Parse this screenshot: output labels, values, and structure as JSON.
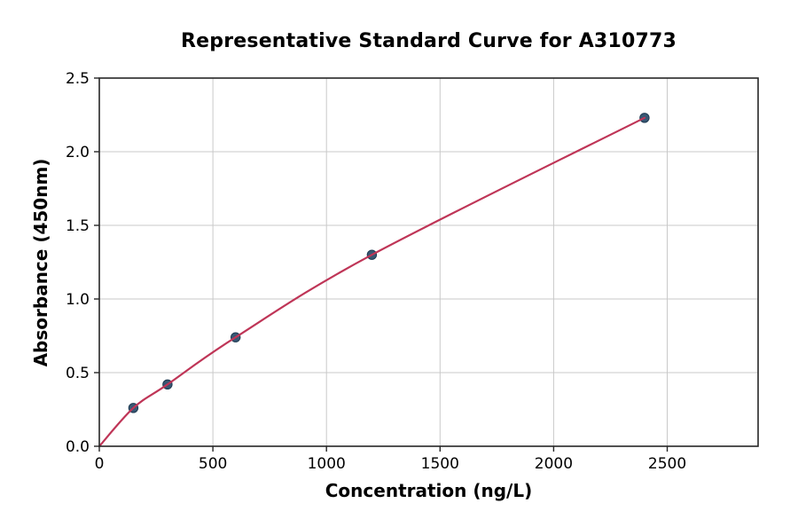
{
  "figure": {
    "background": "#ffffff"
  },
  "chart_data": {
    "type": "scatter",
    "title": "Representative Standard Curve for A310773",
    "xlabel": "Concentration (ng/L)",
    "ylabel": "Absorbance (450nm)",
    "xlim": [
      0,
      2900
    ],
    "ylim": [
      0,
      2.5
    ],
    "xticks": [
      0,
      500,
      1000,
      1500,
      2000,
      2500
    ],
    "yticks": [
      0.0,
      0.5,
      1.0,
      1.5,
      2.0,
      2.5
    ],
    "grid": true,
    "legend_position": "none",
    "points": [
      {
        "x": 150,
        "y": 0.26
      },
      {
        "x": 300,
        "y": 0.42
      },
      {
        "x": 600,
        "y": 0.74
      },
      {
        "x": 1200,
        "y": 1.3
      },
      {
        "x": 2400,
        "y": 2.23
      }
    ],
    "curve": {
      "description": "smooth fitted standard curve from origin through all data points",
      "x_start": 0,
      "y_start": 0.0,
      "x_end": 2400,
      "y_end": 2.23
    },
    "colors": {
      "curve": "#bf3557",
      "point_fill": "#2d4f6d",
      "point_edge": "#1e3a52",
      "grid": "#c9c9c9",
      "spine": "#262626",
      "tick_text": "#000000"
    }
  }
}
